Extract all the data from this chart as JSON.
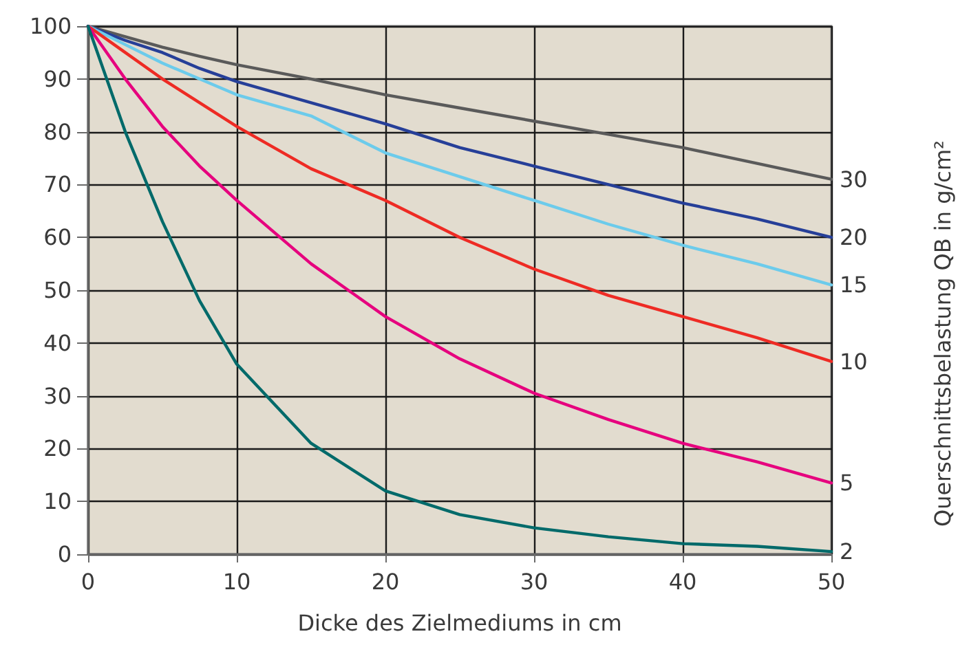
{
  "chart_data": {
    "type": "line",
    "xlabel": "Dicke des Zielmediums in cm",
    "y2label": "Querschnittsbelastung QB in g/cm²",
    "x": [
      0,
      2.5,
      5,
      7.5,
      10,
      15,
      20,
      25,
      30,
      35,
      40,
      45,
      50
    ],
    "series": [
      {
        "name": "30",
        "color": "#5a5a5a",
        "values": [
          100,
          98,
          96,
          94.3,
          92.7,
          90,
          87,
          84.5,
          82,
          79.5,
          77,
          74,
          71
        ]
      },
      {
        "name": "20",
        "color": "#263f98",
        "values": [
          100,
          97.3,
          95,
          92,
          89.5,
          85.5,
          81.5,
          77,
          73.5,
          70,
          66.5,
          63.5,
          60
        ]
      },
      {
        "name": "15",
        "color": "#6ccbeb",
        "values": [
          100,
          96.5,
          93,
          90,
          87,
          83,
          76,
          71.5,
          67,
          62.5,
          58.5,
          55,
          51
        ]
      },
      {
        "name": "10",
        "color": "#ee2b24",
        "values": [
          100,
          95,
          90,
          85.5,
          81,
          73,
          67,
          60,
          54,
          49,
          45,
          41,
          36.5
        ]
      },
      {
        "name": "5",
        "color": "#e6007e",
        "values": [
          100,
          90,
          81,
          73.5,
          67,
          55,
          45,
          37,
          30.5,
          25.5,
          21,
          17.5,
          13.5
        ]
      },
      {
        "name": "2",
        "color": "#006a6a",
        "values": [
          100,
          80,
          63,
          48,
          36,
          21,
          12,
          7.5,
          5,
          3.3,
          2,
          1.5,
          0.5
        ]
      }
    ],
    "xlim": [
      0,
      50
    ],
    "xticks": [
      0,
      10,
      20,
      30,
      40,
      50
    ],
    "ylim": [
      0,
      100
    ],
    "yticks": [
      0,
      10,
      20,
      30,
      40,
      50,
      60,
      70,
      80,
      90,
      100
    ],
    "grid": true,
    "legend": false,
    "marker": "none",
    "line_style": "solid"
  }
}
